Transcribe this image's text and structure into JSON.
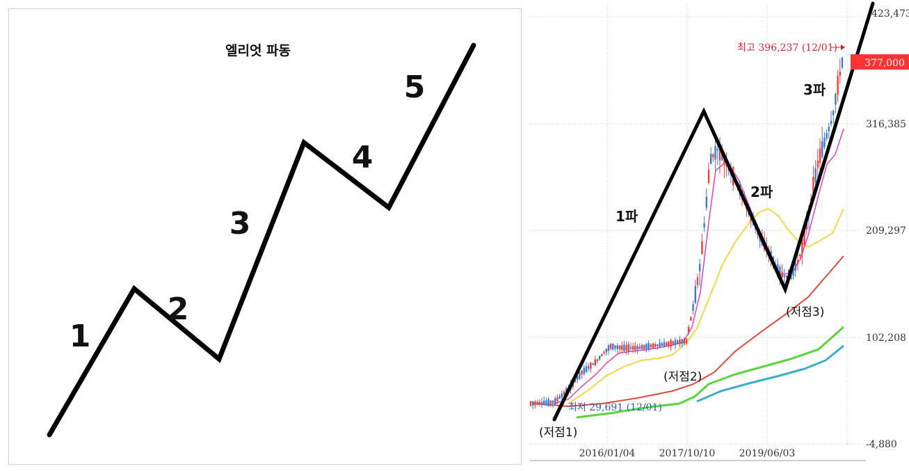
{
  "chart_data": [
    {
      "type": "line",
      "title": "엘리엇 파동",
      "wave_labels": [
        "1",
        "2",
        "3",
        "4",
        "5"
      ],
      "path": [
        {
          "x": 0,
          "y": 0
        },
        {
          "x": 1,
          "y": 2.7
        },
        {
          "x": 2,
          "y": 1.4
        },
        {
          "x": 3,
          "y": 5.4
        },
        {
          "x": 4,
          "y": 4.2
        },
        {
          "x": 5,
          "y": 7.2
        }
      ]
    },
    {
      "type": "line",
      "y_ticks": [
        "423,473",
        "316,385",
        "209,297",
        "102,208",
        "-4,880"
      ],
      "y_tick_values": [
        423473,
        316385,
        209297,
        102208,
        -4880
      ],
      "ylim": [
        -4880,
        423473
      ],
      "x_ticks": [
        "2016/01/04",
        "2017/10/10",
        "2019/06/03"
      ],
      "current_price": "377,000",
      "high_annotation": "최고 396,237 (12/01)",
      "low_annotation": "최저 29,691 (12/01)",
      "wave_annotations": [
        "1파",
        "2파",
        "3파"
      ],
      "low_points": [
        "(저점1)",
        "(저점2)",
        "(저점3)"
      ],
      "colors": {
        "up": "#e8413a",
        "down": "#3c78d8",
        "ma_short": "#e040c0",
        "ma_mid": "#f0d84a",
        "ma_long": "#e04a3a",
        "ma_longer": "#5ad43c",
        "ma_longest": "#3aaec8",
        "price_tag": "#ff3333",
        "hi_text": "#dd2233",
        "lo_text": "#2b5fb8"
      }
    }
  ]
}
